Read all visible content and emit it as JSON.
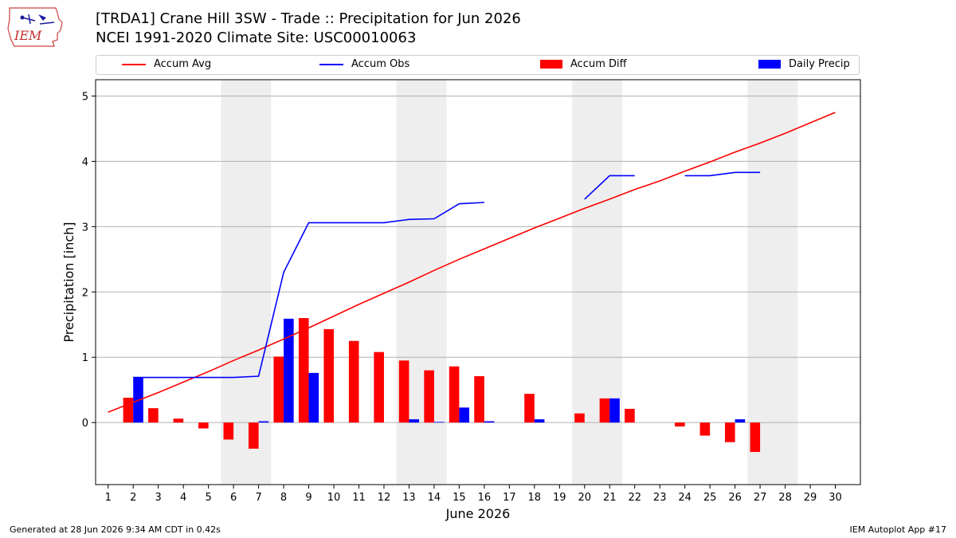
{
  "header": {
    "title_line1": "[TRDA1] Crane Hill 3SW - Trade :: Precipitation for Jun 2026",
    "title_line2": "NCEI 1991-2020 Climate Site: USC00010063",
    "logo_text": "IEM"
  },
  "footer": {
    "generated": "Generated at 28 Jun 2026 9:34 AM CDT in 0.42s",
    "app": "IEM Autoplot App #17"
  },
  "colors": {
    "avg": "#ff0000",
    "obs": "#0000ff",
    "diff": "#ff0000",
    "daily": "#0000ff",
    "weekend_shade": "#eeeeee",
    "grid": "#b0b0b0"
  },
  "chart_data": {
    "type": "bar",
    "title": "[TRDA1] Crane Hill 3SW - Trade :: Precipitation for Jun 2026",
    "xlabel": "June 2026",
    "ylabel": "Precipitation [inch]",
    "xlim": [
      0.5,
      31.0
    ],
    "ylim": [
      -0.95,
      5.25
    ],
    "yticks": [
      0,
      1,
      2,
      3,
      4,
      5
    ],
    "xticks": [
      1,
      2,
      3,
      4,
      5,
      6,
      7,
      8,
      9,
      10,
      11,
      12,
      13,
      14,
      15,
      16,
      17,
      18,
      19,
      20,
      21,
      22,
      23,
      24,
      25,
      26,
      27,
      28,
      29,
      30
    ],
    "grid": "horizontal",
    "legend": "top",
    "weekend_bands": [
      [
        5.5,
        7.5
      ],
      [
        12.5,
        14.5
      ],
      [
        19.5,
        21.5
      ],
      [
        26.5,
        28.5
      ]
    ],
    "series": [
      {
        "name": "Accum Avg",
        "kind": "line",
        "color": "#ff0000",
        "x": [
          1,
          2,
          3,
          4,
          5,
          6,
          7,
          8,
          9,
          10,
          11,
          12,
          13,
          14,
          15,
          16,
          17,
          18,
          19,
          20,
          21,
          22,
          23,
          24,
          25,
          26,
          27,
          28,
          29,
          30
        ],
        "values": [
          0.16,
          0.31,
          0.46,
          0.62,
          0.78,
          0.95,
          1.11,
          1.28,
          1.45,
          1.63,
          1.81,
          1.98,
          2.15,
          2.33,
          2.5,
          2.66,
          2.82,
          2.98,
          3.13,
          3.28,
          3.42,
          3.57,
          3.7,
          3.85,
          3.99,
          4.14,
          4.28,
          4.43,
          4.59,
          4.75
        ]
      },
      {
        "name": "Accum Obs",
        "kind": "line",
        "color": "#0000ff",
        "x": [
          2,
          3,
          4,
          5,
          6,
          7,
          8,
          9,
          10,
          11,
          12,
          13,
          14,
          15,
          16,
          17,
          18,
          19,
          20,
          21,
          22,
          23,
          24,
          25,
          26,
          27
        ],
        "values": [
          0.69,
          0.69,
          0.69,
          0.69,
          0.69,
          0.71,
          2.3,
          3.06,
          3.06,
          3.06,
          3.06,
          3.11,
          3.12,
          3.35,
          3.37,
          null,
          null,
          null,
          3.42,
          3.78,
          3.78,
          null,
          3.78,
          3.78,
          3.83,
          3.83
        ]
      },
      {
        "name": "Accum Diff",
        "kind": "bar",
        "color": "#ff0000",
        "x": [
          2,
          3,
          4,
          5,
          6,
          7,
          8,
          9,
          10,
          11,
          12,
          13,
          14,
          15,
          16,
          18,
          20,
          21,
          22,
          24,
          25,
          26,
          27
        ],
        "values": [
          0.38,
          0.22,
          0.06,
          -0.09,
          -0.26,
          -0.4,
          1.01,
          1.6,
          1.43,
          1.25,
          1.08,
          0.95,
          0.8,
          0.86,
          0.71,
          0.44,
          0.14,
          0.37,
          0.21,
          -0.06,
          -0.2,
          -0.3,
          -0.45
        ]
      },
      {
        "name": "Daily Precip",
        "kind": "bar",
        "color": "#0000ff",
        "x": [
          2,
          7,
          8,
          9,
          13,
          14,
          15,
          16,
          18,
          21,
          26
        ],
        "values": [
          0.69,
          0.02,
          1.59,
          0.76,
          0.05,
          0.01,
          0.23,
          0.02,
          0.05,
          0.37,
          0.05
        ]
      }
    ]
  }
}
